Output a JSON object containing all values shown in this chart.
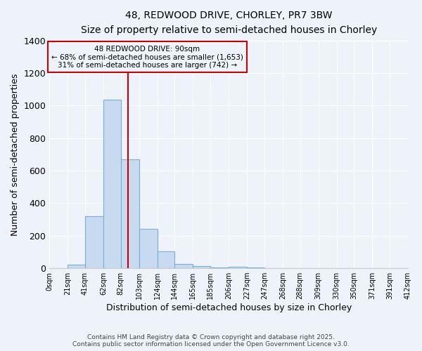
{
  "title": "48, REDWOOD DRIVE, CHORLEY, PR7 3BW",
  "subtitle": "Size of property relative to semi-detached houses in Chorley",
  "xlabel": "Distribution of semi-detached houses by size in Chorley",
  "ylabel": "Number of semi-detached properties",
  "bin_edges": [
    0,
    21,
    41,
    62,
    82,
    103,
    124,
    144,
    165,
    185,
    206,
    227,
    247,
    268,
    288,
    309,
    330,
    350,
    371,
    391,
    412
  ],
  "bar_heights": [
    0,
    20,
    320,
    1035,
    670,
    240,
    105,
    25,
    15,
    5,
    10,
    5,
    0,
    0,
    0,
    0,
    0,
    0,
    0,
    0
  ],
  "bar_color": "#c8daf0",
  "bar_edge_color": "#7aafd4",
  "property_size": 90,
  "property_name": "48 REDWOOD DRIVE: 90sqm",
  "pct_smaller": 68,
  "n_smaller": 1653,
  "pct_larger": 31,
  "n_larger": 742,
  "vline_color": "#cc0000",
  "ylim": [
    0,
    1400
  ],
  "annotation_box_color": "#cc0000",
  "bg_color": "#eef2fb",
  "grid_color": "#ffffff",
  "footer_line1": "Contains HM Land Registry data © Crown copyright and database right 2025.",
  "footer_line2": "Contains public sector information licensed under the Open Government Licence v3.0.",
  "tick_labels": [
    "0sqm",
    "21sqm",
    "41sqm",
    "62sqm",
    "82sqm",
    "103sqm",
    "124sqm",
    "144sqm",
    "165sqm",
    "185sqm",
    "206sqm",
    "227sqm",
    "247sqm",
    "268sqm",
    "288sqm",
    "309sqm",
    "330sqm",
    "350sqm",
    "371sqm",
    "391sqm",
    "412sqm"
  ]
}
